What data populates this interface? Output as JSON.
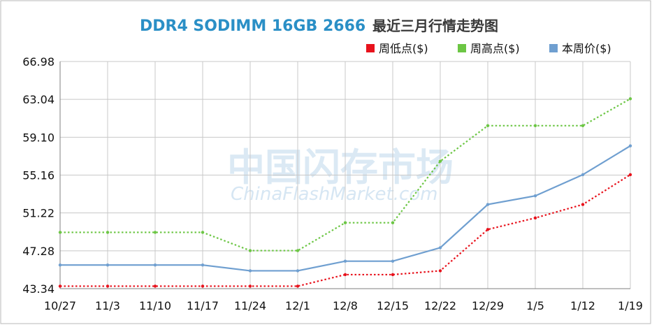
{
  "chart_data": {
    "type": "line",
    "title_en": "DDR4 SODIMM 16GB 2666",
    "title_cn": "最近三月行情走势图",
    "watermark_cn": "中国闪存市场",
    "watermark_en": "ChinaFlashMarket.com",
    "categories": [
      "10/27",
      "11/3",
      "11/10",
      "11/17",
      "11/24",
      "12/1",
      "12/8",
      "12/15",
      "12/22",
      "12/29",
      "1/5",
      "1/12",
      "1/19"
    ],
    "y_ticks": [
      "43.34",
      "47.28",
      "51.22",
      "55.16",
      "59.10",
      "63.04",
      "66.98"
    ],
    "ylim": [
      43.34,
      66.98
    ],
    "grid": true,
    "legend_placement": "top-right",
    "series": [
      {
        "name": "周低点($)",
        "color": "#e8121c",
        "style": "dotted",
        "values": [
          43.6,
          43.6,
          43.6,
          43.6,
          43.6,
          43.6,
          44.8,
          44.8,
          45.2,
          49.5,
          50.7,
          52.1,
          55.2
        ]
      },
      {
        "name": "周高点($)",
        "color": "#6cc644",
        "style": "dotted",
        "values": [
          49.2,
          49.2,
          49.2,
          49.2,
          47.3,
          47.3,
          50.2,
          50.2,
          56.6,
          60.3,
          60.3,
          60.3,
          63.1
        ]
      },
      {
        "name": "本周价($)",
        "color": "#6f9fd0",
        "style": "solid",
        "values": [
          45.8,
          45.8,
          45.8,
          45.8,
          45.2,
          45.2,
          46.2,
          46.2,
          47.6,
          52.1,
          53.0,
          55.2,
          58.2
        ]
      }
    ]
  }
}
